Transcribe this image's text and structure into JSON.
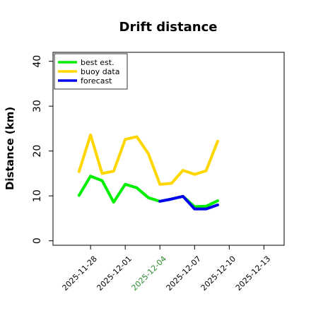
{
  "chart_data": {
    "type": "line",
    "title": "Drift distance",
    "xlabel": "",
    "ylabel": "Distance (km)",
    "ylim": [
      -1,
      42
    ],
    "xlim": [
      "2025-11-24T18:00",
      "2025-12-14T18:00"
    ],
    "x_ticks": [
      "2025-11-28",
      "2025-12-01",
      "2025-12-04",
      "2025-12-07",
      "2025-12-10",
      "2025-12-13"
    ],
    "x_tick_colors": [
      "#000000",
      "#000000",
      "#2e8b2e",
      "#000000",
      "#000000",
      "#000000"
    ],
    "y_ticks": [
      0,
      10,
      20,
      30,
      40
    ],
    "grid": false,
    "legend_position": "top-left",
    "series": [
      {
        "name": "best est.",
        "color": "#00ee00",
        "points": [
          [
            "2025-11-27T00:00",
            10.1
          ],
          [
            "2025-11-28T00:00",
            14.4
          ],
          [
            "2025-11-29T00:00",
            13.4
          ],
          [
            "2025-11-30T00:00",
            8.6
          ],
          [
            "2025-12-01T00:00",
            12.6
          ],
          [
            "2025-12-02T00:00",
            11.8
          ],
          [
            "2025-12-03T00:00",
            9.6
          ],
          [
            "2025-12-04T00:00",
            8.8
          ],
          [
            "2025-12-05T00:00",
            9.3
          ],
          [
            "2025-12-06T00:00",
            9.9
          ],
          [
            "2025-12-07T00:00",
            7.6
          ],
          [
            "2025-12-08T00:00",
            7.7
          ],
          [
            "2025-12-09T00:00",
            8.9
          ]
        ]
      },
      {
        "name": "buoy data",
        "color": "#ffd700",
        "points": [
          [
            "2025-11-27T00:00",
            15.4
          ],
          [
            "2025-11-28T00:00",
            23.6
          ],
          [
            "2025-11-29T00:00",
            15.0
          ],
          [
            "2025-11-30T00:00",
            15.5
          ],
          [
            "2025-12-01T00:00",
            22.6
          ],
          [
            "2025-12-02T00:00",
            23.2
          ],
          [
            "2025-12-03T00:00",
            19.4
          ],
          [
            "2025-12-04T00:00",
            12.6
          ],
          [
            "2025-12-05T00:00",
            12.8
          ],
          [
            "2025-12-06T00:00",
            15.7
          ],
          [
            "2025-12-07T00:00",
            14.8
          ],
          [
            "2025-12-08T00:00",
            15.6
          ],
          [
            "2025-12-09T00:00",
            22.2
          ]
        ]
      },
      {
        "name": "forecast",
        "color": "#0000ee",
        "points": [
          [
            "2025-12-04T00:00",
            8.8
          ],
          [
            "2025-12-05T00:00",
            9.3
          ],
          [
            "2025-12-06T00:00",
            9.9
          ],
          [
            "2025-12-07T00:00",
            7.1
          ],
          [
            "2025-12-08T00:00",
            7.1
          ],
          [
            "2025-12-09T00:00",
            8.0
          ]
        ]
      }
    ]
  }
}
